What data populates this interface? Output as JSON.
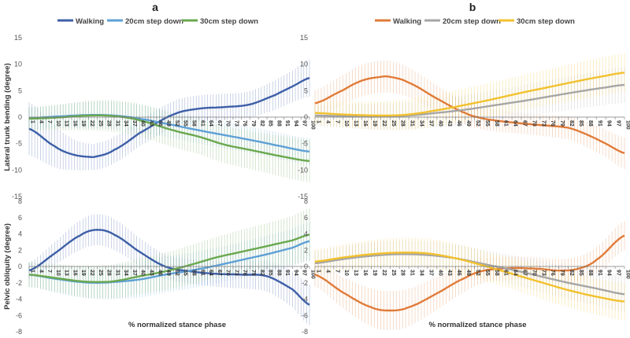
{
  "panel_labels": {
    "a": "a",
    "b": "b"
  },
  "legends": {
    "a": [
      "Walking",
      "20cm step down",
      "30cm step down"
    ],
    "b": [
      "Walking",
      "20cm step down",
      "30cm step down"
    ]
  },
  "colors": {
    "a_walking": "#3d5fa8",
    "a_20cm": "#5ea0d6",
    "a_30cm": "#6aa84f",
    "b_walking": "#e07b39",
    "b_20cm": "#a6a6a6",
    "b_30cm": "#f2c12e"
  },
  "chart_data": [
    {
      "id": "a-top",
      "type": "line",
      "panel": "a",
      "title": "",
      "xlabel": "",
      "ylabel": "Lateral trunk bending (degree)",
      "ylim": [
        -15,
        15
      ],
      "yticks": [
        -15,
        -10,
        -5,
        0,
        5,
        10,
        15
      ],
      "x_tick_labels": [
        "1",
        "4",
        "7",
        "10",
        "13",
        "16",
        "19",
        "22",
        "25",
        "28",
        "31",
        "34",
        "37",
        "40",
        "43",
        "46",
        "49",
        "52",
        "55",
        "58",
        "61",
        "64",
        "67",
        "70",
        "73",
        "76",
        "79",
        "82",
        "85",
        "88",
        "91",
        "94",
        "97",
        "100"
      ],
      "series": [
        {
          "name": "Walking",
          "color_key": "a_walking",
          "x": [
            1,
            10,
            16,
            22,
            25,
            31,
            40,
            52,
            61,
            70,
            79,
            88,
            94,
            100
          ],
          "mean": [
            -2.2,
            -5.5,
            -7,
            -7.5,
            -7.4,
            -6.2,
            -3,
            0.5,
            1.6,
            1.9,
            2.4,
            4.2,
            5.8,
            7.4
          ],
          "sd": [
            5,
            4,
            3,
            2.5,
            2.5,
            2.5,
            2.5,
            2.5,
            2.5,
            2.5,
            2.5,
            2.8,
            3,
            3.5
          ]
        },
        {
          "name": "20cm step down",
          "color_key": "a_20cm",
          "x": [
            1,
            10,
            22,
            31,
            40,
            52,
            61,
            70,
            79,
            88,
            100
          ],
          "mean": [
            -0.2,
            0.1,
            0.4,
            0.3,
            -0.3,
            -1.5,
            -2.5,
            -3.4,
            -4.3,
            -5.3,
            -6.5
          ],
          "sd": [
            2,
            2.2,
            2.5,
            2.6,
            2.6,
            2.5,
            2.5,
            2.5,
            2.5,
            2.5,
            2.5
          ]
        },
        {
          "name": "30cm step down",
          "color_key": "a_30cm",
          "x": [
            1,
            10,
            22,
            31,
            40,
            52,
            61,
            70,
            79,
            88,
            100
          ],
          "mean": [
            -0.3,
            -0.1,
            0.3,
            0.2,
            -0.6,
            -2.5,
            -3.7,
            -5.2,
            -6.2,
            -7.2,
            -8.3
          ],
          "sd": [
            2.2,
            2.4,
            2.8,
            3,
            3.1,
            3.2,
            3.3,
            3.5,
            3.6,
            3.8,
            4
          ]
        }
      ]
    },
    {
      "id": "a-bottom",
      "type": "line",
      "panel": "a",
      "title": "",
      "xlabel": "% normalized stance phase",
      "ylabel": "Pelvic obliquity (degree)",
      "ylim": [
        -8,
        8
      ],
      "yticks": [
        -8,
        -6,
        -4,
        -2,
        0,
        2,
        4,
        6,
        8
      ],
      "x_tick_labels": [
        "1",
        "4",
        "7",
        "10",
        "13",
        "16",
        "19",
        "22",
        "25",
        "28",
        "31",
        "34",
        "37",
        "40",
        "43",
        "46",
        "49",
        "52",
        "55",
        "58",
        "61",
        "64",
        "67",
        "70",
        "73",
        "76",
        "79",
        "82",
        "85",
        "88",
        "91",
        "94",
        "97",
        "100"
      ],
      "series": [
        {
          "name": "Walking",
          "color_key": "a_walking",
          "x": [
            1,
            10,
            19,
            25,
            31,
            40,
            49,
            58,
            67,
            76,
            85,
            94,
            100
          ],
          "mean": [
            -0.5,
            1.6,
            3.8,
            4.5,
            3.9,
            1.8,
            0,
            -0.6,
            -0.9,
            -1,
            -1.2,
            -2.8,
            -4.7
          ],
          "sd": [
            1,
            1.4,
            1.8,
            1.9,
            1.9,
            1.7,
            1.5,
            1.5,
            1.6,
            1.7,
            1.9,
            2.2,
            2.5
          ]
        },
        {
          "name": "20cm step down",
          "color_key": "a_20cm",
          "x": [
            1,
            10,
            19,
            25,
            31,
            40,
            49,
            58,
            67,
            76,
            85,
            94,
            100
          ],
          "mean": [
            -1,
            -1.5,
            -1.9,
            -2,
            -1.9,
            -1.6,
            -1,
            -0.5,
            0.1,
            0.8,
            1.5,
            2.3,
            3.1
          ],
          "sd": [
            1.5,
            1.7,
            1.9,
            2,
            2.1,
            2.2,
            2.2,
            2.2,
            2.2,
            2.2,
            2.3,
            2.3,
            2.4
          ]
        },
        {
          "name": "30cm step down",
          "color_key": "a_30cm",
          "x": [
            1,
            10,
            19,
            25,
            31,
            40,
            49,
            58,
            67,
            76,
            85,
            94,
            100
          ],
          "mean": [
            -1,
            -1.4,
            -1.8,
            -1.9,
            -1.8,
            -1.2,
            -0.6,
            0.2,
            1.1,
            1.8,
            2.5,
            3.2,
            3.9
          ],
          "sd": [
            1.5,
            1.7,
            1.9,
            2,
            2.1,
            2.2,
            2.3,
            2.4,
            2.5,
            2.7,
            2.8,
            3,
            3.2
          ]
        }
      ]
    },
    {
      "id": "b-top",
      "type": "line",
      "panel": "b",
      "title": "",
      "xlabel": "",
      "ylabel": "",
      "ylim": [
        -15,
        15
      ],
      "yticks": [
        -15,
        -10,
        -5,
        0,
        5,
        10,
        15
      ],
      "x_tick_labels": [
        "1",
        "4",
        "7",
        "10",
        "13",
        "16",
        "19",
        "22",
        "25",
        "28",
        "31",
        "34",
        "37",
        "40",
        "43",
        "46",
        "49",
        "52",
        "55",
        "58",
        "61",
        "64",
        "67",
        "70",
        "73",
        "76",
        "79",
        "82",
        "85",
        "88",
        "91",
        "94",
        "97",
        "100"
      ],
      "series": [
        {
          "name": "Walking",
          "color_key": "b_walking",
          "x": [
            1,
            10,
            16,
            22,
            25,
            31,
            40,
            49,
            55,
            64,
            73,
            82,
            88,
            94,
            100
          ],
          "mean": [
            2.6,
            5.1,
            6.9,
            7.6,
            7.6,
            6.5,
            3.5,
            0.8,
            -0.3,
            -1,
            -1.5,
            -2,
            -3.3,
            -5,
            -6.8
          ],
          "sd": [
            2.5,
            2.8,
            3,
            3,
            3,
            2.8,
            2.5,
            2.2,
            2.1,
            2,
            2,
            2.2,
            2.4,
            2.6,
            3
          ]
        },
        {
          "name": "20cm step down",
          "color_key": "b_20cm",
          "x": [
            1,
            10,
            22,
            31,
            40,
            49,
            58,
            67,
            76,
            85,
            94,
            100
          ],
          "mean": [
            0.3,
            0.2,
            0.1,
            0.3,
            0.8,
            1.4,
            2.2,
            3,
            3.9,
            4.8,
            5.6,
            6.1
          ],
          "sd": [
            2,
            2.2,
            2.5,
            2.6,
            2.7,
            2.8,
            2.9,
            3,
            3.1,
            3.2,
            3.3,
            3.4
          ]
        },
        {
          "name": "30cm step down",
          "color_key": "b_30cm",
          "x": [
            1,
            10,
            22,
            31,
            40,
            49,
            58,
            67,
            76,
            85,
            94,
            100
          ],
          "mean": [
            0.8,
            0.5,
            0.3,
            0.5,
            1.3,
            2.3,
            3.4,
            4.6,
            5.7,
            6.8,
            7.8,
            8.4
          ],
          "sd": [
            2.2,
            2.4,
            2.7,
            2.9,
            3,
            3.1,
            3.2,
            3.3,
            3.4,
            3.5,
            3.6,
            3.6
          ]
        }
      ]
    },
    {
      "id": "b-bottom",
      "type": "line",
      "panel": "b",
      "title": "",
      "xlabel": "% normalized stance phase",
      "ylabel": "",
      "ylim": [
        -8,
        8
      ],
      "yticks": [
        -8,
        -6,
        -4,
        -2,
        0,
        2,
        4,
        6,
        8
      ],
      "x_tick_labels": [
        "1",
        "4",
        "7",
        "10",
        "13",
        "16",
        "19",
        "22",
        "25",
        "28",
        "31",
        "34",
        "37",
        "40",
        "43",
        "46",
        "49",
        "52",
        "55",
        "58",
        "61",
        "64",
        "67",
        "70",
        "73",
        "76",
        "79",
        "82",
        "85",
        "88",
        "91",
        "94",
        "97",
        "100"
      ],
      "series": [
        {
          "name": "Walking",
          "color_key": "b_walking",
          "x": [
            1,
            10,
            19,
            25,
            31,
            40,
            49,
            55,
            64,
            73,
            79,
            85,
            91,
            100
          ],
          "mean": [
            -1,
            -3.2,
            -5,
            -5.4,
            -5,
            -3.3,
            -1.4,
            -0.5,
            -0.2,
            -0.3,
            -0.5,
            -0.3,
            0.8,
            3.8
          ],
          "sd": [
            1.5,
            1.9,
            2.3,
            2.4,
            2.3,
            2,
            1.7,
            1.5,
            1.4,
            1.4,
            1.4,
            1.5,
            1.6,
            1.8
          ]
        },
        {
          "name": "20cm step down",
          "color_key": "b_20cm",
          "x": [
            1,
            10,
            19,
            28,
            37,
            46,
            55,
            64,
            73,
            82,
            91,
            100
          ],
          "mean": [
            0.4,
            0.9,
            1.3,
            1.5,
            1.4,
            1,
            0.3,
            -0.4,
            -1.2,
            -2,
            -2.7,
            -3.4
          ],
          "sd": [
            1.5,
            1.6,
            1.7,
            1.7,
            1.7,
            1.7,
            1.7,
            1.8,
            1.9,
            2,
            2.1,
            2.2
          ]
        },
        {
          "name": "30cm step down",
          "color_key": "b_30cm",
          "x": [
            1,
            10,
            19,
            28,
            37,
            46,
            55,
            64,
            73,
            82,
            91,
            100
          ],
          "mean": [
            0.6,
            1.1,
            1.5,
            1.7,
            1.6,
            1,
            0.1,
            -0.9,
            -1.9,
            -2.9,
            -3.7,
            -4.3
          ],
          "sd": [
            1.5,
            1.6,
            1.7,
            1.8,
            1.8,
            1.8,
            1.8,
            1.9,
            2,
            2.1,
            2.2,
            2.3
          ]
        }
      ]
    }
  ]
}
